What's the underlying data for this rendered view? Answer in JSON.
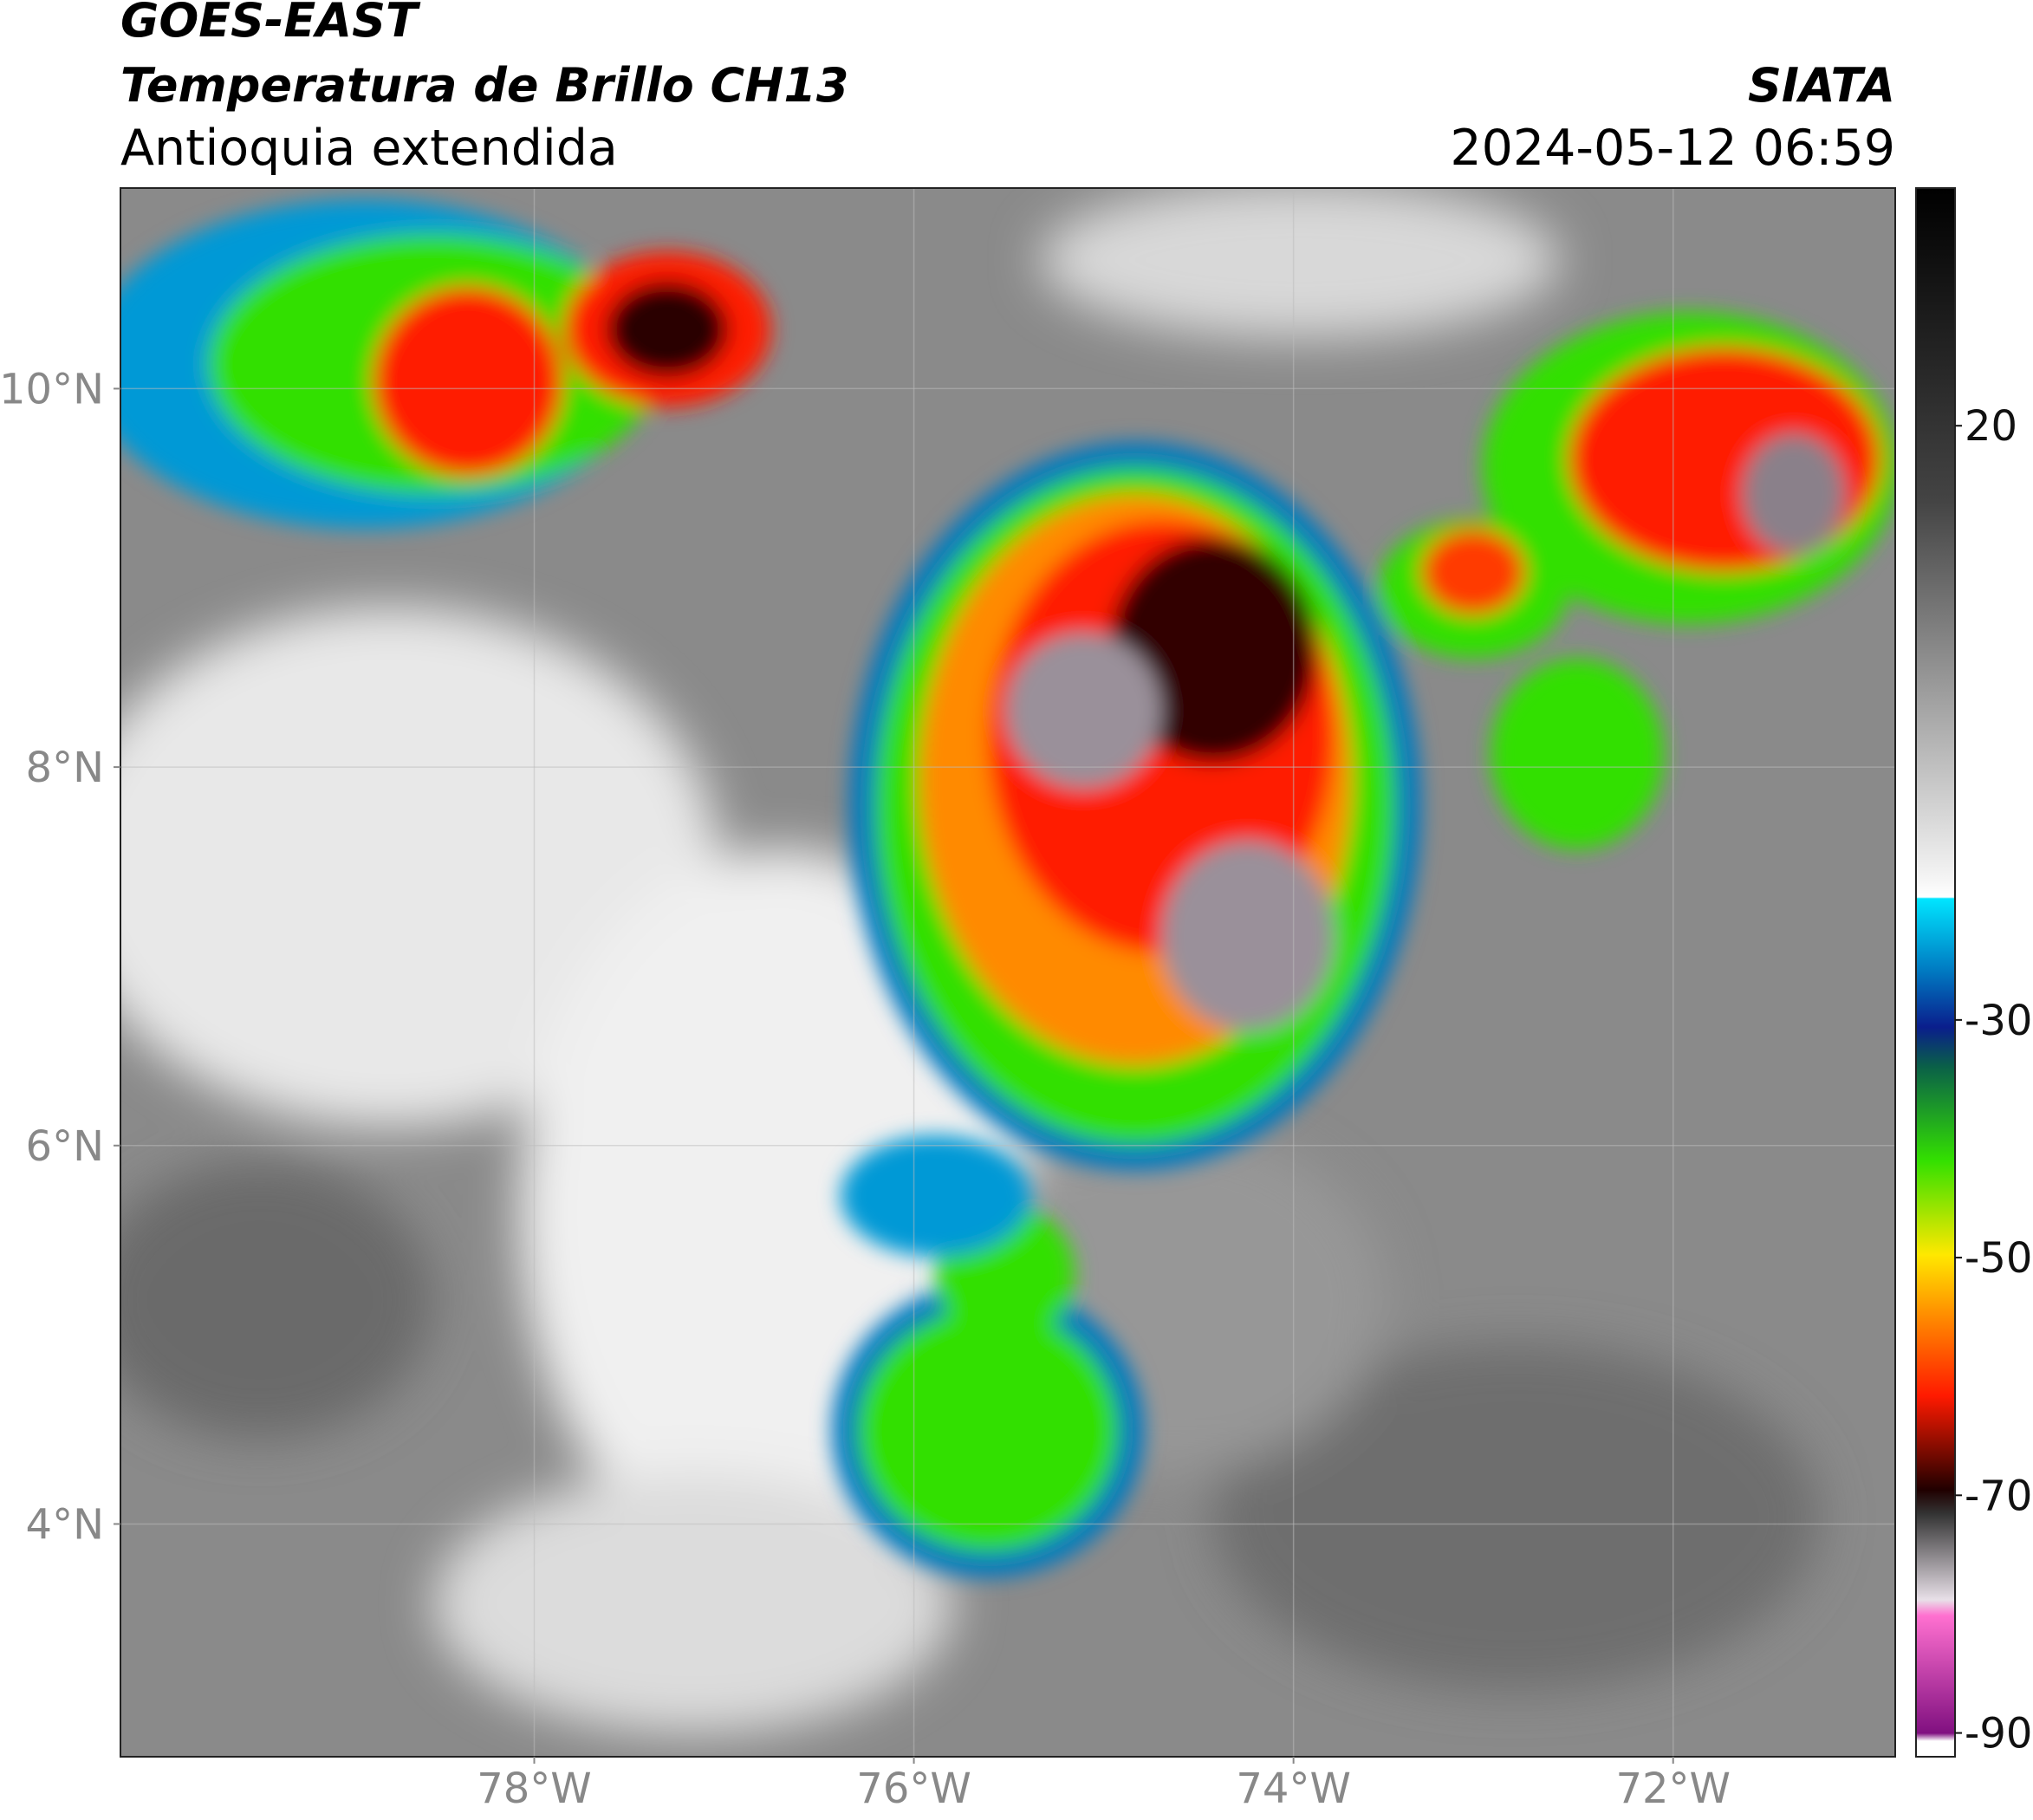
{
  "header": {
    "title": "GOES-EAST",
    "subtitle": "Temperatura de Brillo CH13",
    "region": "Antioquia extendida",
    "source": "SIATA",
    "datetime": "2024-05-12 06:59"
  },
  "map": {
    "xlim": [
      -80.18,
      -70.83
    ],
    "ylim": [
      2.77,
      11.06
    ],
    "xticks": [
      {
        "value": -78,
        "label": "78°W"
      },
      {
        "value": -76,
        "label": "76°W"
      },
      {
        "value": -74,
        "label": "74°W"
      },
      {
        "value": -72,
        "label": "72°W"
      }
    ],
    "yticks": [
      {
        "value": 4,
        "label": "4°N"
      },
      {
        "value": 6,
        "label": "6°N"
      },
      {
        "value": 8,
        "label": "8°N"
      },
      {
        "value": 10,
        "label": "10°N"
      }
    ],
    "grid": true
  },
  "colorbar": {
    "clim": [
      -92,
      40
    ],
    "ticks": [
      -90,
      -70,
      -50,
      -30,
      20
    ]
  }
}
